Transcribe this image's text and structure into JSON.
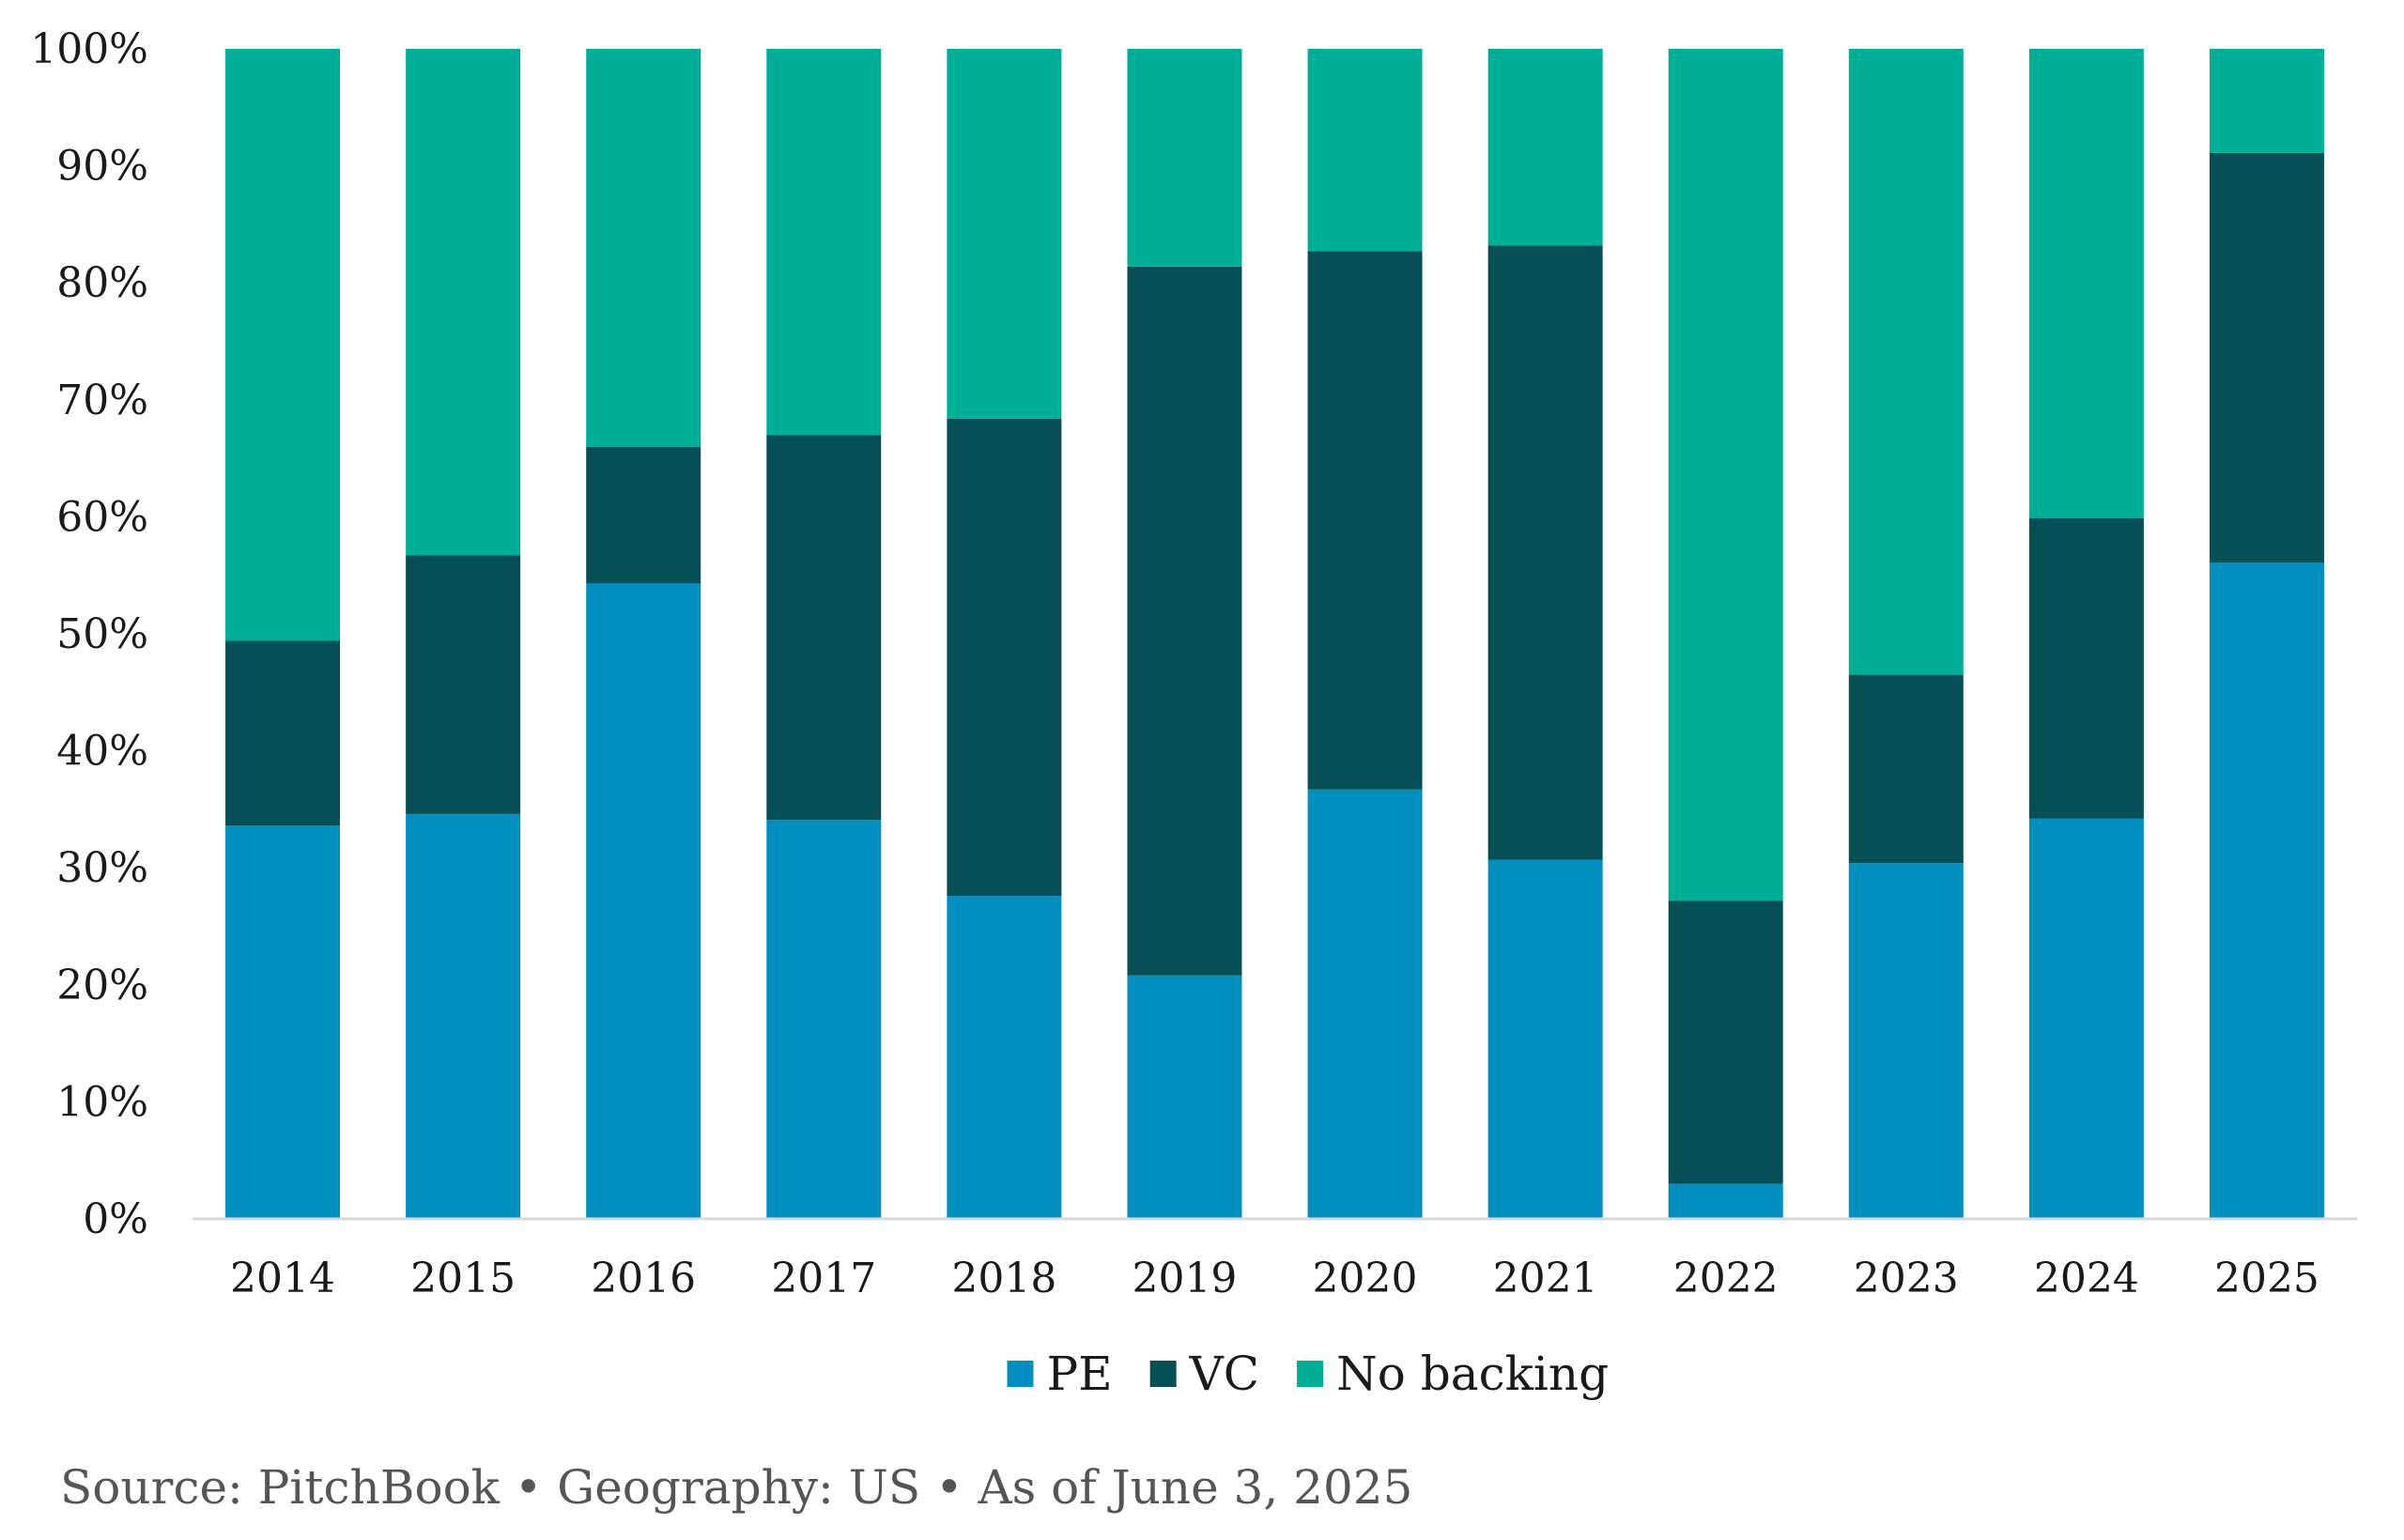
{
  "chart_data": {
    "type": "bar",
    "stacked": true,
    "categories": [
      "2014",
      "2015",
      "2016",
      "2017",
      "2018",
      "2019",
      "2020",
      "2021",
      "2022",
      "2023",
      "2024",
      "2025"
    ],
    "series": [
      {
        "name": "PE",
        "color": "#008fbf",
        "values": [
          33.6,
          34.6,
          54.3,
          34.1,
          27.6,
          20.8,
          36.7,
          30.7,
          3.0,
          30.4,
          34.2,
          56.1
        ]
      },
      {
        "name": "VC",
        "color": "#074f57",
        "values": [
          15.8,
          22.1,
          11.7,
          32.9,
          40.8,
          60.6,
          46.0,
          52.5,
          24.2,
          16.1,
          25.7,
          35.0
        ]
      },
      {
        "name": "No backing",
        "color": "#00ad96",
        "values": [
          50.6,
          43.3,
          34.0,
          33.0,
          31.6,
          18.6,
          17.3,
          16.8,
          72.8,
          53.5,
          40.1,
          8.9
        ]
      }
    ],
    "ylim": [
      0,
      100
    ],
    "yticks": [
      "0%",
      "10%",
      "20%",
      "30%",
      "40%",
      "50%",
      "60%",
      "70%",
      "80%",
      "90%",
      "100%"
    ],
    "legend_position": "bottom",
    "grid": false
  },
  "footer": {
    "source": "Source: PitchBook • Geography: US • As of June 3, 2025"
  }
}
